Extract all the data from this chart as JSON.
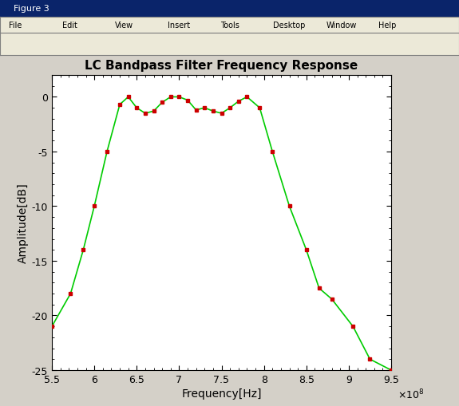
{
  "title": "LC Bandpass Filter Frequency Response",
  "xlabel": "Frequency[Hz]",
  "ylabel": "Amplitude[dB]",
  "xlim": [
    550000000.0,
    950000000.0
  ],
  "ylim": [
    -25,
    2
  ],
  "yticks": [
    0,
    -5,
    -10,
    -15,
    -20,
    -25
  ],
  "xticks": [
    550000000.0,
    600000000.0,
    650000000.0,
    700000000.0,
    750000000.0,
    800000000.0,
    850000000.0,
    900000000.0,
    950000000.0
  ],
  "xtick_labels": [
    "5.5",
    "6",
    "6.5",
    "7",
    "7.5",
    "8",
    "8.5",
    "9",
    "9.5"
  ],
  "ytick_labels": [
    "0",
    "-5",
    "-10",
    "-15",
    "-20",
    "-25"
  ],
  "freq": [
    550000000.0,
    572000000.0,
    587000000.0,
    600000000.0,
    615000000.0,
    630000000.0,
    640000000.0,
    650000000.0,
    660000000.0,
    670000000.0,
    680000000.0,
    690000000.0,
    700000000.0,
    710000000.0,
    720000000.0,
    730000000.0,
    740000000.0,
    750000000.0,
    760000000.0,
    770000000.0,
    780000000.0,
    795000000.0,
    810000000.0,
    830000000.0,
    850000000.0,
    865000000.0,
    880000000.0,
    905000000.0,
    925000000.0,
    950000000.0
  ],
  "amplitude": [
    -21.0,
    -18.0,
    -14.0,
    -10.0,
    -5.0,
    -0.7,
    0.0,
    -1.0,
    -1.5,
    -1.3,
    -0.5,
    0.0,
    0.0,
    -0.3,
    -1.2,
    -1.0,
    -1.3,
    -1.5,
    -1.0,
    -0.4,
    0.0,
    -1.0,
    -5.0,
    -10.0,
    -14.0,
    -17.5,
    -18.5,
    -21.0,
    -24.0,
    -25.0
  ],
  "line_color": "#00CC00",
  "marker_color": "#CC0000",
  "marker": "s",
  "markersize": 3.5,
  "linewidth": 1.2,
  "plot_bg_color": "#FFFFFF",
  "fig_bg_color": "#D4D0C8",
  "title_bar_color": "#0A246A",
  "title_bar_text": "Figure 3",
  "title_fontsize": 11,
  "label_fontsize": 10,
  "tick_fontsize": 9
}
